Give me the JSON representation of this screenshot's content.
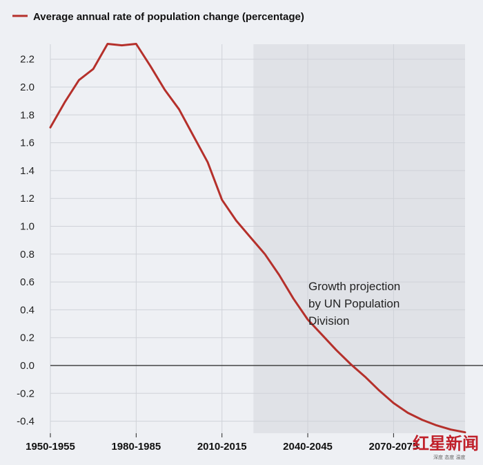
{
  "chart_data": {
    "type": "line",
    "legend": {
      "label": "Average annual rate of population change (percentage)",
      "placement": "top-left",
      "color": "#b5302b"
    },
    "grid": true,
    "ylim": [
      -0.48,
      2.32
    ],
    "y_ticks": [
      2.2,
      2.0,
      1.8,
      1.6,
      1.4,
      1.2,
      1.0,
      0.8,
      0.6,
      0.4,
      0.2,
      0.0,
      -0.2,
      -0.4
    ],
    "y_tick_labels": [
      "2.2",
      "2.0",
      "1.8",
      "1.6",
      "1.4",
      "1.2",
      "1.0",
      "0.8",
      "0.6",
      "0.4",
      "0.2",
      "0.0",
      "-0.2",
      "-0.4"
    ],
    "x_tick_labels": [
      "1950-1955",
      "1980-1985",
      "2010-2015",
      "2040-2045",
      "2070-2075"
    ],
    "x_tick_index": [
      0,
      6,
      12,
      18,
      24
    ],
    "series": [
      {
        "color": "#b5302b",
        "values": [
          1.71,
          1.89,
          2.05,
          2.13,
          2.31,
          2.3,
          2.31,
          2.15,
          1.98,
          1.84,
          1.65,
          1.46,
          1.19,
          1.04,
          0.92,
          0.8,
          0.65,
          0.48,
          0.33,
          0.22,
          0.11,
          0.01,
          -0.08,
          -0.18,
          -0.27,
          -0.34,
          -0.39,
          -0.43,
          -0.46,
          -0.48
        ]
      }
    ],
    "projection_start_index": 14.2,
    "projection_color": "#e0e2e7",
    "annotations": [
      "Growth projection",
      "by UN Population",
      "Division"
    ]
  },
  "watermark": {
    "main": "红星新闻",
    "sub": "深度 态度 温度"
  }
}
